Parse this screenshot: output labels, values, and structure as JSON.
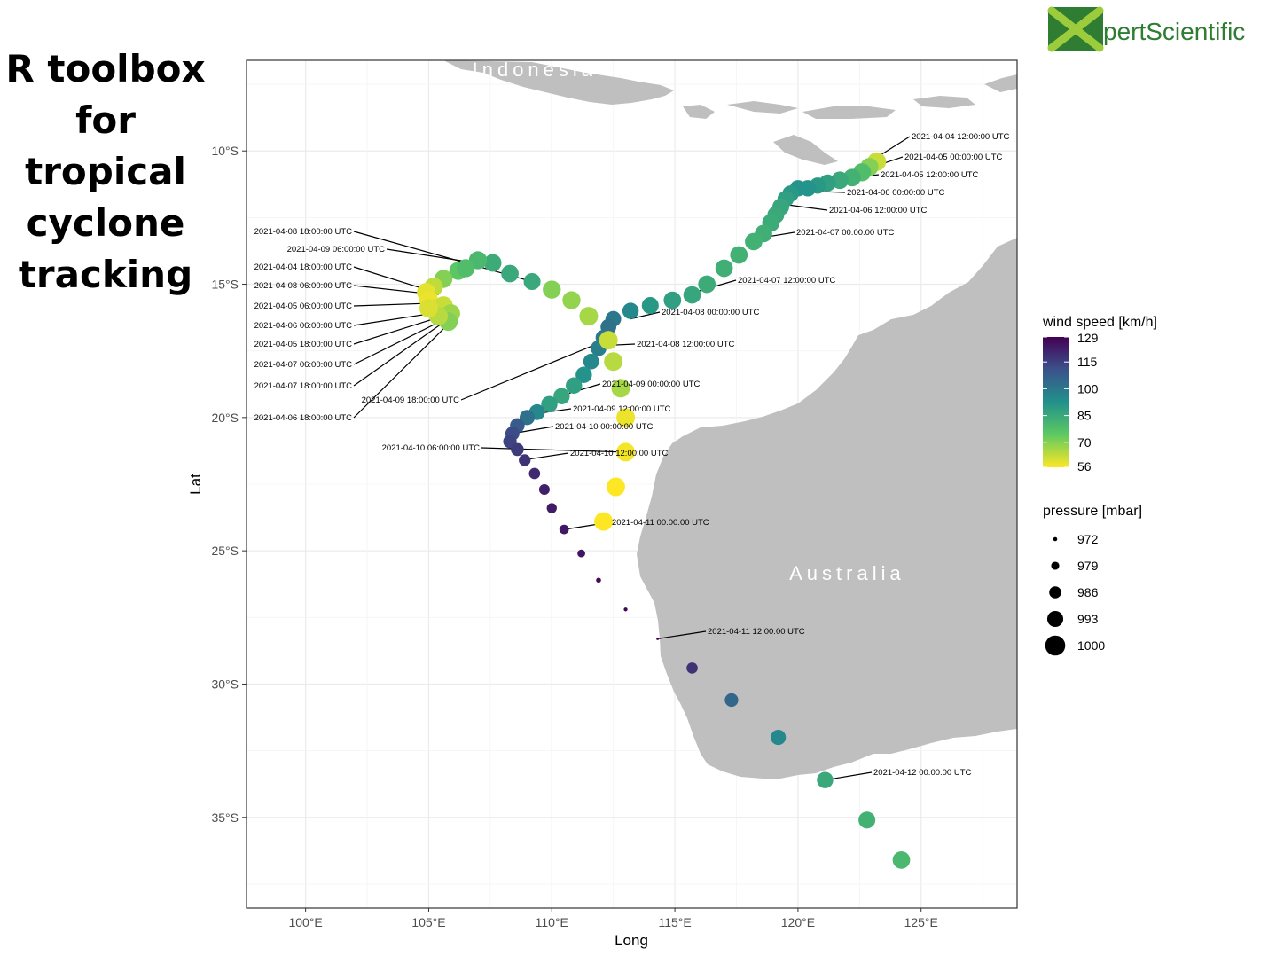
{
  "page": {
    "title_lines": [
      "R toolbox",
      "for",
      "tropical",
      "cyclone",
      "tracking"
    ],
    "logo_text_x": "X",
    "logo_text_rest": "pertScientific"
  },
  "chart_data": {
    "type": "scatter",
    "xlabel": "Long",
    "ylabel": "Lat",
    "xlim": [
      97.6,
      128.9
    ],
    "ylim": [
      -38.4,
      -6.6
    ],
    "x_ticks": [
      100,
      105,
      110,
      115,
      120,
      125
    ],
    "x_tick_labels": [
      "100°E",
      "105°E",
      "110°E",
      "115°E",
      "120°E",
      "125°E"
    ],
    "y_ticks": [
      -10,
      -15,
      -20,
      -25,
      -30,
      -35
    ],
    "y_tick_labels": [
      "10°S",
      "15°S",
      "20°S",
      "25°S",
      "30°S",
      "35°S"
    ],
    "grid": true,
    "region_labels": [
      {
        "text": "Indonesia",
        "lon": 109.3,
        "lat": -7.2
      },
      {
        "text": "Australia",
        "lon": 122.0,
        "lat": -26.1
      }
    ],
    "legend": {
      "position": "right",
      "color": {
        "title": "wind speed [km/h]",
        "min": 56,
        "max": 129,
        "labels": [
          "129",
          "115",
          "100",
          "85",
          "70",
          "56"
        ],
        "values": [
          129,
          115,
          100,
          85,
          70,
          56
        ]
      },
      "size": {
        "title": "pressure [mbar]",
        "labels": [
          "972",
          "979",
          "986",
          "993",
          "1000"
        ],
        "values": [
          972,
          979,
          986,
          993,
          1000
        ]
      }
    },
    "tracks": [
      {
        "points": [
          [
            123.2,
            -10.4,
            62,
            1000
          ],
          [
            122.9,
            -10.6,
            70,
            999
          ],
          [
            122.6,
            -10.8,
            78,
            999
          ],
          [
            122.2,
            -11.0,
            82,
            998
          ],
          [
            121.7,
            -11.1,
            85,
            998
          ],
          [
            121.2,
            -11.2,
            88,
            997
          ],
          [
            120.8,
            -11.3,
            90,
            996
          ],
          [
            120.4,
            -11.4,
            92,
            996
          ],
          [
            120.0,
            -11.4,
            92,
            996
          ],
          [
            119.7,
            -11.6,
            90,
            996
          ],
          [
            119.5,
            -11.8,
            88,
            996
          ],
          [
            119.3,
            -12.1,
            86,
            997
          ],
          [
            119.1,
            -12.4,
            85,
            997
          ],
          [
            118.9,
            -12.7,
            84,
            998
          ],
          [
            118.6,
            -13.1,
            83,
            998
          ],
          [
            118.2,
            -13.4,
            82,
            998
          ],
          [
            117.6,
            -13.9,
            82,
            998
          ],
          [
            117.0,
            -14.4,
            83,
            998
          ],
          [
            116.3,
            -15.0,
            84,
            998
          ],
          [
            115.7,
            -15.4,
            86,
            998
          ],
          [
            114.9,
            -15.6,
            88,
            998
          ],
          [
            114.0,
            -15.8,
            90,
            997
          ],
          [
            113.2,
            -16.0,
            95,
            996
          ],
          [
            112.5,
            -16.3,
            100,
            995
          ],
          [
            112.3,
            -16.6,
            102,
            995
          ],
          [
            112.1,
            -17.0,
            100,
            995
          ],
          [
            111.9,
            -17.4,
            98,
            995
          ],
          [
            111.6,
            -17.9,
            95,
            995
          ],
          [
            111.3,
            -18.4,
            92,
            996
          ],
          [
            110.9,
            -18.8,
            88,
            996
          ],
          [
            110.4,
            -19.2,
            86,
            996
          ],
          [
            109.9,
            -19.5,
            88,
            996
          ],
          [
            109.4,
            -19.8,
            95,
            995
          ],
          [
            109.0,
            -20.0,
            102,
            994
          ],
          [
            108.6,
            -20.3,
            108,
            993
          ],
          [
            108.4,
            -20.6,
            112,
            992
          ],
          [
            108.3,
            -20.9,
            114,
            991
          ],
          [
            108.6,
            -21.2,
            116,
            990
          ],
          [
            108.9,
            -21.6,
            118,
            988
          ],
          [
            109.3,
            -22.1,
            120,
            987
          ],
          [
            109.7,
            -22.7,
            122,
            986
          ],
          [
            110.0,
            -23.4,
            123,
            985
          ],
          [
            110.5,
            -24.2,
            124,
            984
          ],
          [
            111.2,
            -25.1,
            125,
            981
          ],
          [
            111.9,
            -26.1,
            127,
            976
          ],
          [
            113.0,
            -27.2,
            128,
            974
          ],
          [
            114.3,
            -28.3,
            129,
            972
          ],
          [
            115.7,
            -29.4,
            118,
            987
          ],
          [
            117.3,
            -30.6,
            105,
            991
          ],
          [
            119.2,
            -32.0,
            95,
            994
          ],
          [
            121.1,
            -33.6,
            85,
            996
          ],
          [
            122.8,
            -35.1,
            82,
            997
          ],
          [
            124.2,
            -36.6,
            80,
            998
          ]
        ]
      },
      {
        "points": [
          [
            109.2,
            -14.9,
            85,
            997
          ],
          [
            108.3,
            -14.6,
            85,
            998
          ],
          [
            107.6,
            -14.2,
            84,
            998
          ],
          [
            107.0,
            -14.1,
            80,
            999
          ],
          [
            106.2,
            -14.5,
            75,
            999
          ],
          [
            105.6,
            -14.8,
            70,
            999
          ],
          [
            105.2,
            -15.1,
            63,
            1000
          ],
          [
            104.9,
            -15.3,
            59,
            1000
          ],
          [
            105.0,
            -15.6,
            58,
            1000
          ],
          [
            105.3,
            -15.9,
            60,
            1000
          ],
          [
            105.6,
            -15.8,
            62,
            1000
          ],
          [
            105.9,
            -16.1,
            67,
            1000
          ],
          [
            105.8,
            -16.4,
            70,
            1000
          ],
          [
            105.4,
            -16.2,
            64,
            1000
          ],
          [
            105.0,
            -15.9,
            60,
            1000
          ],
          [
            106.5,
            -14.4,
            78,
            999
          ],
          [
            110.0,
            -15.2,
            70,
            999
          ],
          [
            110.8,
            -15.6,
            68,
            999
          ],
          [
            111.5,
            -16.2,
            66,
            1000
          ],
          [
            112.3,
            -17.1,
            62,
            1000
          ],
          [
            112.5,
            -17.9,
            64,
            1000
          ],
          [
            112.8,
            -18.9,
            66,
            1000
          ],
          [
            113.0,
            -20.0,
            58,
            1000
          ],
          [
            113.0,
            -21.3,
            57,
            1000
          ],
          [
            112.6,
            -22.6,
            56,
            1000
          ],
          [
            112.1,
            -23.9,
            56,
            1000
          ]
        ]
      }
    ],
    "annotations": [
      {
        "text": "2021-04-04 12:00:00 UTC",
        "lon": 123.1,
        "lat": -10.3,
        "side": "right"
      },
      {
        "text": "2021-04-05 00:00:00 UTC",
        "lon": 122.7,
        "lat": -10.7,
        "side": "right"
      },
      {
        "text": "2021-04-05 12:00:00 UTC",
        "lon": 121.4,
        "lat": -11.1,
        "side": "right"
      },
      {
        "text": "2021-04-06 00:00:00 UTC",
        "lon": 120.1,
        "lat": -11.5,
        "side": "right"
      },
      {
        "text": "2021-04-06 12:00:00 UTC",
        "lon": 119.4,
        "lat": -12.0,
        "side": "right"
      },
      {
        "text": "2021-04-07 00:00:00 UTC",
        "lon": 118.2,
        "lat": -13.3,
        "side": "right"
      },
      {
        "text": "2021-04-07 12:00:00 UTC",
        "lon": 115.8,
        "lat": -15.3,
        "side": "right"
      },
      {
        "text": "2021-04-08 00:00:00 UTC",
        "lon": 113.2,
        "lat": -16.3,
        "side": "right"
      },
      {
        "text": "2021-04-08 12:00:00 UTC",
        "lon": 112.1,
        "lat": -17.3,
        "side": "right"
      },
      {
        "text": "2021-04-09 00:00:00 UTC",
        "lon": 110.3,
        "lat": -19.2,
        "side": "right"
      },
      {
        "text": "2021-04-09 12:00:00 UTC",
        "lon": 109.0,
        "lat": -19.9,
        "side": "right"
      },
      {
        "text": "2021-04-10 00:00:00 UTC",
        "lon": 108.4,
        "lat": -20.6,
        "side": "right"
      },
      {
        "text": "2021-04-10 12:00:00 UTC",
        "lon": 108.8,
        "lat": -21.6,
        "side": "right"
      },
      {
        "text": "2021-04-11 00:00:00 UTC",
        "lon": 110.5,
        "lat": -24.2,
        "side": "right"
      },
      {
        "text": "2021-04-11 12:00:00 UTC",
        "lon": 114.3,
        "lat": -28.3,
        "side": "right"
      },
      {
        "text": "2021-04-12 00:00:00 UTC",
        "lon": 121.1,
        "lat": -33.6,
        "side": "right"
      },
      {
        "text": "2021-04-08 18:00:00 UTC",
        "lon": 109.2,
        "lat": -14.9,
        "side": "left"
      },
      {
        "text": "2021-04-09 06:00:00 UTC",
        "lon": 107.6,
        "lat": -14.3,
        "side": "left"
      },
      {
        "text": "2021-04-04 18:00:00 UTC",
        "lon": 104.9,
        "lat": -15.2,
        "side": "left"
      },
      {
        "text": "2021-04-08 06:00:00 UTC",
        "lon": 105.4,
        "lat": -15.4,
        "side": "left"
      },
      {
        "text": "2021-04-05 06:00:00 UTC",
        "lon": 105.5,
        "lat": -15.7,
        "side": "left"
      },
      {
        "text": "2021-04-06 06:00:00 UTC",
        "lon": 105.8,
        "lat": -16.0,
        "side": "left"
      },
      {
        "text": "2021-04-05 18:00:00 UTC",
        "lon": 105.9,
        "lat": -16.1,
        "side": "left"
      },
      {
        "text": "2021-04-07 06:00:00 UTC",
        "lon": 105.9,
        "lat": -16.2,
        "side": "left"
      },
      {
        "text": "2021-04-07 18:00:00 UTC",
        "lon": 105.8,
        "lat": -16.3,
        "side": "left"
      },
      {
        "text": "2021-04-09 18:00:00 UTC",
        "lon": 112.2,
        "lat": -17.1,
        "side": "left"
      },
      {
        "text": "2021-04-06 18:00:00 UTC",
        "lon": 105.9,
        "lat": -16.4,
        "side": "left"
      },
      {
        "text": "2021-04-10 06:00:00 UTC",
        "lon": 113.0,
        "lat": -21.3,
        "side": "left"
      }
    ]
  }
}
